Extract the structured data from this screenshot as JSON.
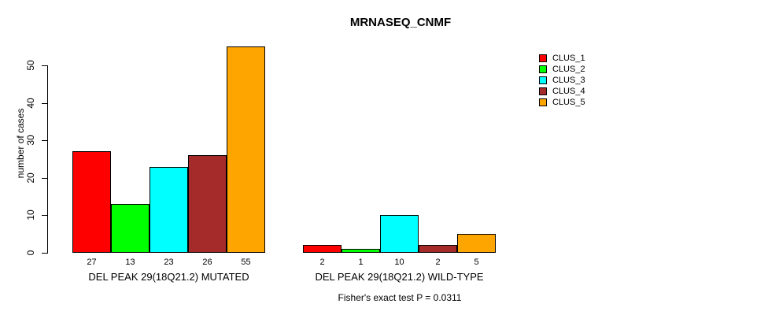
{
  "title": "MRNASEQ_CNMF",
  "y_axis": {
    "label": "number of cases",
    "ticks": [
      0,
      10,
      20,
      30,
      40,
      50
    ]
  },
  "footer": "Fisher's exact test P = 0.0311",
  "legend": {
    "items": [
      {
        "label": "CLUS_1",
        "color": "#FF0000"
      },
      {
        "label": "CLUS_2",
        "color": "#00FF00"
      },
      {
        "label": "CLUS_3",
        "color": "#00FFFF"
      },
      {
        "label": "CLUS_4",
        "color": "#A52A2A"
      },
      {
        "label": "CLUS_5",
        "color": "#FFA500"
      }
    ]
  },
  "chart_data": {
    "type": "bar",
    "title": "MRNASEQ_CNMF",
    "ylabel": "number of cases",
    "ylim": [
      0,
      57
    ],
    "yticks": [
      0,
      10,
      20,
      30,
      40,
      50
    ],
    "grid": false,
    "legend_position": "top-right",
    "categories": [
      "DEL PEAK 29(18Q21.2) MUTATED",
      "DEL PEAK 29(18Q21.2) WILD-TYPE"
    ],
    "series": [
      {
        "name": "CLUS_1",
        "color": "#FF0000",
        "values": [
          27,
          2
        ]
      },
      {
        "name": "CLUS_2",
        "color": "#00FF00",
        "values": [
          13,
          1
        ]
      },
      {
        "name": "CLUS_3",
        "color": "#00FFFF",
        "values": [
          23,
          10
        ]
      },
      {
        "name": "CLUS_4",
        "color": "#A52A2A",
        "values": [
          26,
          2
        ]
      },
      {
        "name": "CLUS_5",
        "color": "#FFA500",
        "values": [
          55,
          5
        ]
      }
    ],
    "bar_value_labels": [
      [
        27,
        13,
        23,
        26,
        55
      ],
      [
        2,
        1,
        10,
        2,
        5
      ]
    ],
    "annotation": "Fisher's exact test P = 0.0311"
  }
}
